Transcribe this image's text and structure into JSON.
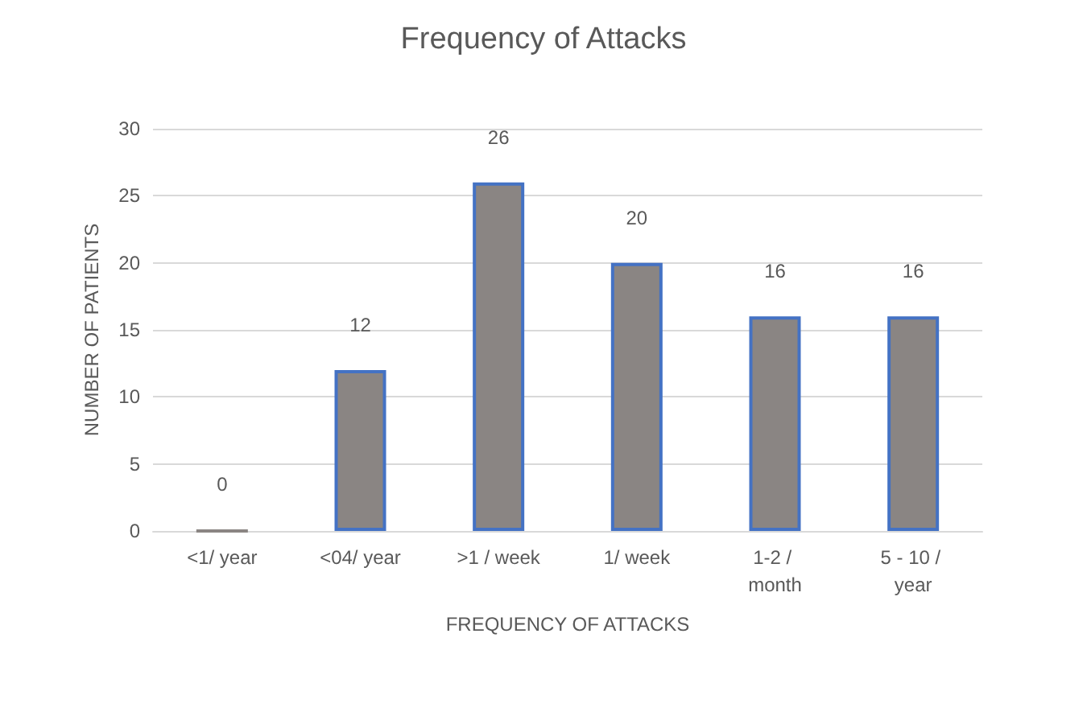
{
  "chart_data": {
    "type": "bar",
    "title": "Frequency of Attacks",
    "xlabel": "FREQUENCY OF ATTACKS",
    "ylabel": "NUMBER OF PATIENTS",
    "categories": [
      "<1/ year",
      "<04/ year",
      ">1 / week",
      "1/ week",
      "1-2 / month",
      "5 - 10 / year"
    ],
    "values": [
      0,
      12,
      26,
      20,
      16,
      16
    ],
    "color": "#8a8583",
    "ylim": [
      0,
      30
    ],
    "yticks": [
      0,
      5,
      10,
      15,
      20,
      25,
      30
    ],
    "grid": "y",
    "data_labels": true
  }
}
